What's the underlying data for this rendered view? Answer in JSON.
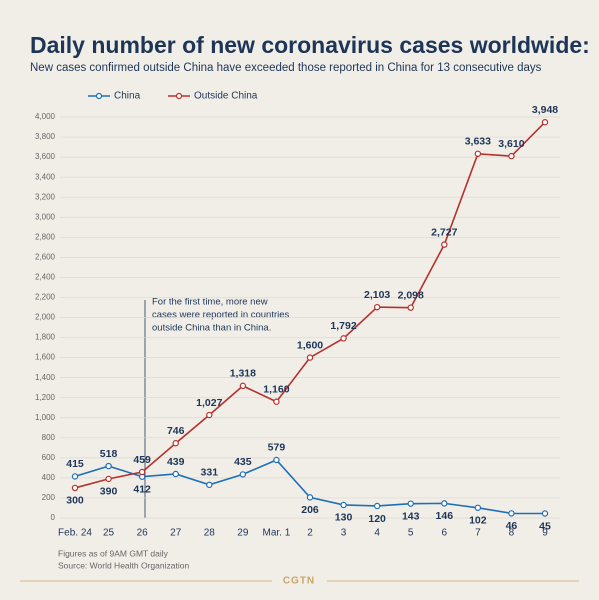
{
  "chart_data": {
    "type": "line",
    "title": "Daily number of new coronavirus cases worldwide:",
    "subtitle": "New cases confirmed outside China have exceeded those reported in China for 13 consecutive days",
    "categories": [
      "Feb. 24",
      "25",
      "26",
      "27",
      "28",
      "29",
      "Mar. 1",
      "2",
      "3",
      "4",
      "5",
      "6",
      "7",
      "8",
      "9"
    ],
    "series": [
      {
        "name": "China",
        "color": "#1f6fb5",
        "values": [
          415,
          518,
          412,
          439,
          331,
          435,
          579,
          206,
          130,
          120,
          143,
          146,
          102,
          46,
          45
        ]
      },
      {
        "name": "Outside China",
        "color": "#b7312c",
        "values": [
          300,
          390,
          459,
          746,
          1027,
          1318,
          1160,
          1600,
          1792,
          2103,
          2098,
          2727,
          3633,
          3610,
          3948
        ],
        "value_labels": [
          "300",
          "390",
          "459",
          "746",
          "1,027",
          "1,318",
          "1,160",
          "1,600",
          "1,792",
          "2,103",
          "2,098",
          "2,727",
          "3,633",
          "3,610",
          "3,948"
        ]
      }
    ],
    "ylim": [
      0,
      4000
    ],
    "yticks": [
      0,
      200,
      400,
      600,
      800,
      {
        "value": 1000,
        "label": "1,000"
      },
      {
        "value": 1200,
        "label": "1,200"
      },
      {
        "value": 1400,
        "label": "1,400"
      },
      {
        "value": 1600,
        "label": "1,600"
      },
      {
        "value": 1800,
        "label": "1,800"
      },
      {
        "value": 2000,
        "label": "2,000"
      },
      {
        "value": 2200,
        "label": "2,200"
      },
      {
        "value": 2400,
        "label": "2,400"
      },
      {
        "value": 2600,
        "label": "2,600"
      },
      {
        "value": 2800,
        "label": "2,800"
      },
      {
        "value": 3000,
        "label": "3,000"
      },
      {
        "value": 3200,
        "label": "3,200"
      },
      {
        "value": 3400,
        "label": "3,400"
      },
      {
        "value": 3600,
        "label": "3,600"
      },
      {
        "value": 3800,
        "label": "3,800"
      },
      {
        "value": 4000,
        "label": "4,000"
      }
    ],
    "grid": true,
    "annotation": [
      "For the first time, more new",
      "cases were reported in countries",
      "outside China than in China."
    ],
    "notes": [
      "Figures as of 9AM GMT daily",
      "Source: World Health Organization"
    ],
    "brand": "CGTN"
  }
}
